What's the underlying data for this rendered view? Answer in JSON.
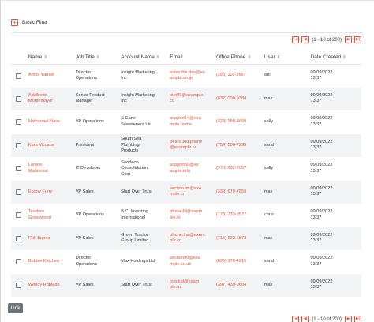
{
  "filter": {
    "label": "Basic Filter",
    "plus_icon": "+"
  },
  "pager": {
    "text": "(1 - 10 of 200)",
    "first": "|◀",
    "prev": "◀",
    "next": "▶",
    "last": "▶|"
  },
  "table": {
    "headers": {
      "name": "Name",
      "job_title": "Job Title",
      "account_name": "Account Name",
      "email": "Email",
      "office_phone": "Office Phone",
      "user": "User",
      "date_created": "Date Created"
    },
    "rows": [
      {
        "name": "Amos Yarnell",
        "job1": "Director",
        "job2": "Operations",
        "acct1": "Insight Marketing",
        "acct2": "Inc",
        "acct3": "",
        "email1": "sales.the.dev@ex",
        "email2": "ample.co.jp",
        "phone": "(256) 116-2667",
        "user": "will",
        "date1": "09/09/2022",
        "date2": "13:37"
      },
      {
        "name1": "Adalberto",
        "name2": "Montemayor",
        "job1": "Senior Product",
        "job2": "Manager",
        "acct1": "Insight Marketing",
        "acct2": "Inc",
        "acct3": "",
        "email1": "info99@example.",
        "email2": "co",
        "phone": "(832) 000-9384",
        "user": "max",
        "date1": "09/09/2022",
        "date2": "13:37"
      },
      {
        "name": "Nathanael Nave",
        "job1": "VP Operations",
        "job2": "",
        "acct1": "S Cane",
        "acct2": "Sweeteners Ltd",
        "acct3": "",
        "email1": "support14@exa",
        "email2": "mple.name",
        "phone": "(428) 288-4609",
        "user": "sally",
        "date1": "09/09/2022",
        "date2": "13:37"
      },
      {
        "name": "Kara Mccabe",
        "job1": "President",
        "job2": "",
        "acct1": "South Sea",
        "acct2": "Plumbing",
        "acct3": "Products",
        "email1": "beans.kid.phone",
        "email2": "@example.tv",
        "phone": "(754) 500-7295",
        "user": "sarah",
        "date1": "09/09/2022",
        "date2": "13:37"
      },
      {
        "name1": "Lorene",
        "name2": "Mahmood",
        "job1": "IT Developer",
        "job2": "",
        "acct1": "Sandeon",
        "acct2": "Consolidation",
        "acct3": "Corp",
        "email1": "support60@ex",
        "email2": "ample.info",
        "phone": "(570) 802-7057",
        "user": "sally",
        "date1": "09/09/2022",
        "date2": "13:37"
      },
      {
        "name": "Ebony Furry",
        "job1": "VP Sales",
        "job2": "",
        "acct1": "Start Over Trust",
        "acct2": "",
        "acct3": "",
        "email1": "section.im@exa",
        "email2": "mple.cn",
        "phone": "(339) 679-7859",
        "user": "max",
        "date1": "09/09/2022",
        "date2": "13:37"
      },
      {
        "name1": "Teodoro",
        "name2": "Greenwood",
        "job1": "VP Operations",
        "job2": "",
        "acct1": "B.C. Investing",
        "acct2": "International",
        "acct3": "",
        "email1": "phone19@exam",
        "email2": "ple.in",
        "phone": "(173) 733-8577",
        "user": "chris",
        "date1": "09/09/2022",
        "date2": "13:37"
      },
      {
        "name": "Rolf Buono",
        "job1": "VP Sales",
        "job2": "",
        "acct1": "Green Tractor",
        "acct2": "Group Limited",
        "acct3": "",
        "email1": "phone.the@exam",
        "email2": "ple.cn",
        "phone": "(715) 632-6873",
        "user": "max",
        "date1": "09/09/2022",
        "date2": "13:37"
      },
      {
        "name": "Bobbie Kinchen",
        "job1": "Director",
        "job2": "Operations",
        "acct1": "Max Holdings Ltd",
        "acct2": "",
        "acct3": "",
        "email1": "section90@exa",
        "email2": "mple.co.uk",
        "phone": "(636) 176-4915",
        "user": "sarah",
        "date1": "09/09/2022",
        "date2": "13:37"
      },
      {
        "name": "Wendy Robledo",
        "job1": "VP Sales",
        "job2": "",
        "acct1": "Start Over Trust",
        "acct2": "",
        "acct3": "",
        "email1": "info.kid@exam",
        "email2": "ple.us",
        "phone": "(397) 439-9684",
        "user": "max",
        "date1": "09/09/2022",
        "date2": "13:37"
      }
    ]
  },
  "link_button": "Link",
  "colors": {
    "accent": "#e0553b",
    "row_alt": "#f2f3f5",
    "button": "#6e7378"
  },
  "icons": {
    "sort": "sort-icon",
    "plus": "plus-icon",
    "checkbox": "checkbox-icon"
  }
}
